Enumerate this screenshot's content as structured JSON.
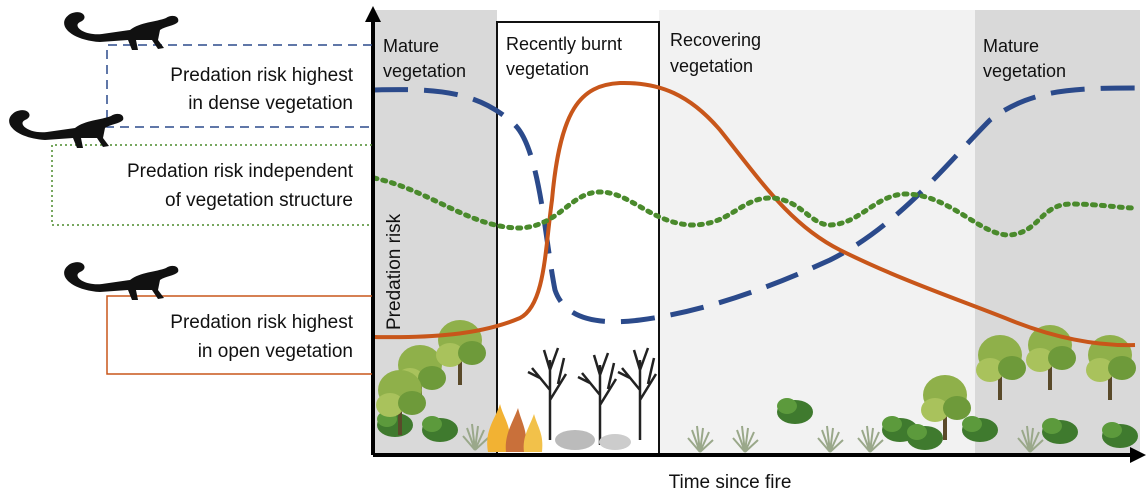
{
  "regions": [
    {
      "lines": [
        "Mature",
        "vegetation"
      ]
    },
    {
      "lines": [
        "Recently burnt",
        "vegetation"
      ]
    },
    {
      "lines": [
        "Recovering",
        "vegetation"
      ]
    },
    {
      "lines": [
        "Mature",
        "vegetation"
      ]
    }
  ],
  "y_axis_label": "Predation risk",
  "x_axis_label": "Time since fire",
  "legend": [
    {
      "lines": [
        "Predation risk highest",
        "in dense vegetation"
      ]
    },
    {
      "lines": [
        "Predation risk independent",
        "of vegetation structure"
      ]
    },
    {
      "lines": [
        "Predation risk highest",
        "in open vegetation"
      ]
    }
  ]
}
